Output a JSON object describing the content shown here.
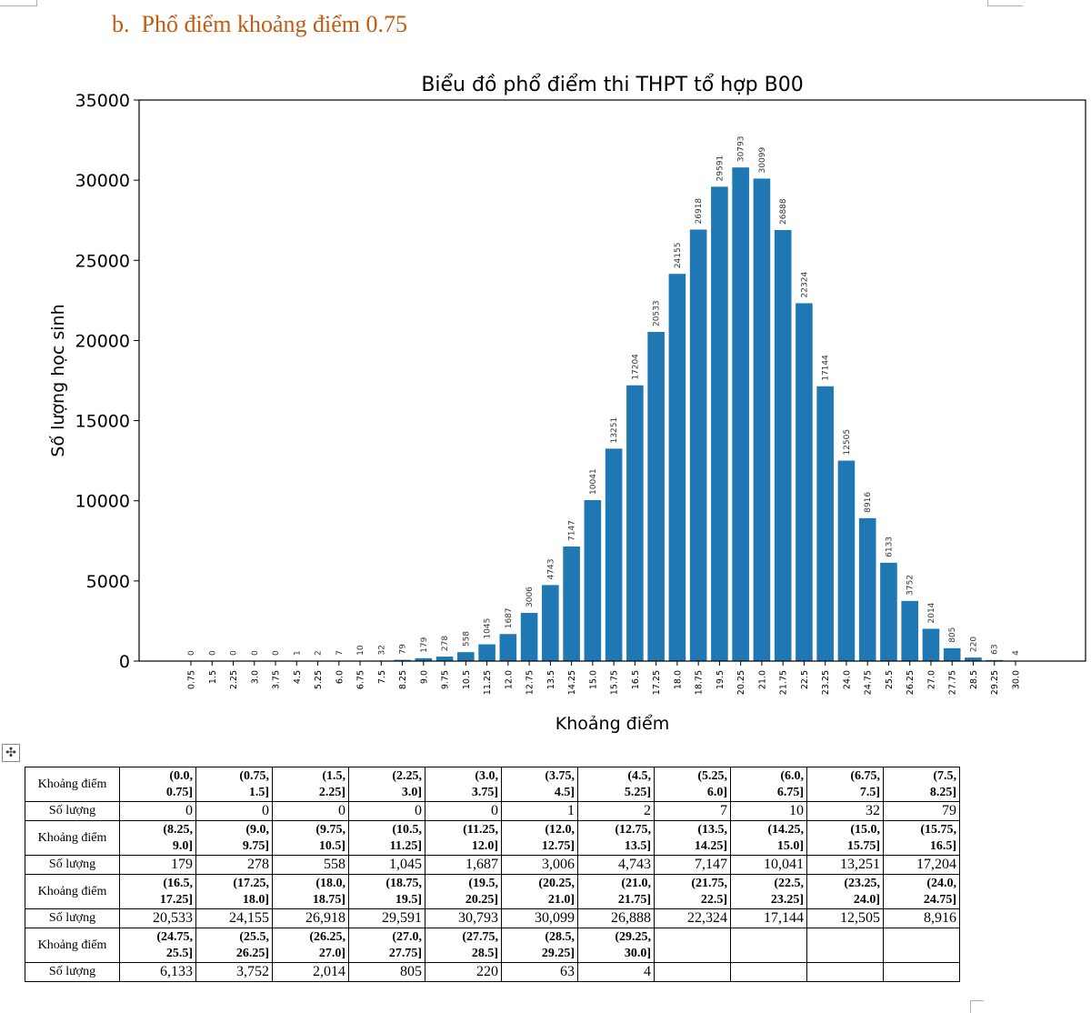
{
  "heading": "b. Phổ điểm khoảng điểm 0.75",
  "chart_data": {
    "type": "bar",
    "title": "Biểu đồ phổ điểm thi THPT tổ hợp B00",
    "xlabel": "Khoảng điểm",
    "ylabel": "Số lượng học sinh",
    "ylim": [
      0,
      35000
    ],
    "yticks": [
      "0",
      "5000",
      "10000",
      "15000",
      "20000",
      "25000",
      "30000",
      "35000"
    ],
    "grid": false,
    "color": "#1f77b4",
    "categories": [
      "0.75",
      "1.5",
      "2.25",
      "3.0",
      "3.75",
      "4.5",
      "5.25",
      "6.0",
      "6.75",
      "7.5",
      "8.25",
      "9.0",
      "9.75",
      "10.5",
      "11.25",
      "12.0",
      "12.75",
      "13.5",
      "14.25",
      "15.0",
      "15.75",
      "16.5",
      "17.25",
      "18.0",
      "18.75",
      "19.5",
      "20.25",
      "21.0",
      "21.75",
      "22.5",
      "23.25",
      "24.0",
      "24.75",
      "25.5",
      "26.25",
      "27.0",
      "27.75",
      "28.5",
      "29.25",
      "30.0"
    ],
    "values": [
      0,
      0,
      0,
      0,
      0,
      1,
      2,
      7,
      10,
      32,
      79,
      179,
      278,
      558,
      1045,
      1687,
      3006,
      4743,
      7147,
      10041,
      13251,
      17204,
      20533,
      24155,
      26918,
      29591,
      30793,
      30099,
      26888,
      22324,
      17144,
      12505,
      8916,
      6133,
      3752,
      2014,
      805,
      220,
      63,
      4
    ]
  },
  "table": {
    "range_label": "Khoảng điểm",
    "count_label": "Số lượng",
    "groups": [
      {
        "ranges": [
          [
            "(0.0,",
            "0.75]"
          ],
          [
            "(0.75,",
            "1.5]"
          ],
          [
            "(1.5,",
            "2.25]"
          ],
          [
            "(2.25,",
            "3.0]"
          ],
          [
            "(3.0,",
            "3.75]"
          ],
          [
            "(3.75,",
            "4.5]"
          ],
          [
            "(4.5,",
            "5.25]"
          ],
          [
            "(5.25,",
            "6.0]"
          ],
          [
            "(6.0,",
            "6.75]"
          ],
          [
            "(6.75,",
            "7.5]"
          ],
          [
            "(7.5,",
            "8.25]"
          ]
        ],
        "counts": [
          "0",
          "0",
          "0",
          "0",
          "0",
          "1",
          "2",
          "7",
          "10",
          "32",
          "79"
        ]
      },
      {
        "ranges": [
          [
            "(8.25,",
            "9.0]"
          ],
          [
            "(9.0,",
            "9.75]"
          ],
          [
            "(9.75,",
            "10.5]"
          ],
          [
            "(10.5,",
            "11.25]"
          ],
          [
            "(11.25,",
            "12.0]"
          ],
          [
            "(12.0,",
            "12.75]"
          ],
          [
            "(12.75,",
            "13.5]"
          ],
          [
            "(13.5,",
            "14.25]"
          ],
          [
            "(14.25,",
            "15.0]"
          ],
          [
            "(15.0,",
            "15.75]"
          ],
          [
            "(15.75,",
            "16.5]"
          ]
        ],
        "counts": [
          "179",
          "278",
          "558",
          "1,045",
          "1,687",
          "3,006",
          "4,743",
          "7,147",
          "10,041",
          "13,251",
          "17,204"
        ]
      },
      {
        "ranges": [
          [
            "(16.5,",
            "17.25]"
          ],
          [
            "(17.25,",
            "18.0]"
          ],
          [
            "(18.0,",
            "18.75]"
          ],
          [
            "(18.75,",
            "19.5]"
          ],
          [
            "(19.5,",
            "20.25]"
          ],
          [
            "(20.25,",
            "21.0]"
          ],
          [
            "(21.0,",
            "21.75]"
          ],
          [
            "(21.75,",
            "22.5]"
          ],
          [
            "(22.5,",
            "23.25]"
          ],
          [
            "(23.25,",
            "24.0]"
          ],
          [
            "(24.0,",
            "24.75]"
          ]
        ],
        "counts": [
          "20,533",
          "24,155",
          "26,918",
          "29,591",
          "30,793",
          "30,099",
          "26,888",
          "22,324",
          "17,144",
          "12,505",
          "8,916"
        ]
      },
      {
        "ranges": [
          [
            "(24.75,",
            "25.5]"
          ],
          [
            "(25.5,",
            "26.25]"
          ],
          [
            "(26.25,",
            "27.0]"
          ],
          [
            "(27.0,",
            "27.75]"
          ],
          [
            "(27.75,",
            "28.5]"
          ],
          [
            "(28.5,",
            "29.25]"
          ],
          [
            "(29.25,",
            "30.0]"
          ],
          [
            "",
            ""
          ],
          [
            "",
            ""
          ],
          [
            "",
            ""
          ],
          [
            "",
            ""
          ]
        ],
        "counts": [
          "6,133",
          "3,752",
          "2,014",
          "805",
          "220",
          "63",
          "4",
          "",
          "",
          "",
          ""
        ]
      }
    ]
  }
}
